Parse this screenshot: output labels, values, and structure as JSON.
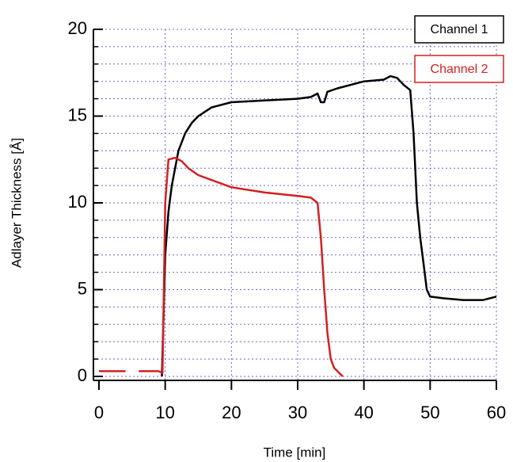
{
  "chart_data": {
    "type": "line",
    "x_label": "Time [min]",
    "y_label": "Adlayer Thickness [Å]",
    "xlim": [
      0,
      60
    ],
    "ylim": [
      0,
      20
    ],
    "xticks": [
      0,
      10,
      20,
      30,
      40,
      50,
      60
    ],
    "yticks": [
      0,
      5,
      10,
      15,
      20
    ],
    "y_minor_ticks": [
      1,
      2,
      3,
      4,
      6,
      7,
      8,
      9,
      11,
      12,
      13,
      14,
      16,
      17,
      18,
      19
    ],
    "grid": true,
    "legend": "upper right",
    "series": [
      {
        "name": "Channel 1",
        "color": "#000000",
        "x": [
          9.5,
          10,
          10.5,
          11,
          12,
          13,
          14,
          15,
          17,
          20,
          25,
          30,
          32,
          33,
          33.5,
          34,
          34.5,
          36,
          40,
          43,
          44,
          45,
          46,
          47,
          47.5,
          48,
          48.5,
          49,
          49.5,
          50,
          52,
          55,
          58,
          60
        ],
        "values": [
          0,
          7,
          9.5,
          11,
          13,
          14,
          14.6,
          15,
          15.5,
          15.8,
          15.9,
          16,
          16.1,
          16.3,
          15.8,
          15.8,
          16.4,
          16.6,
          17,
          17.1,
          17.3,
          17.2,
          16.8,
          16.5,
          14,
          10,
          8,
          6.5,
          5,
          4.6,
          4.5,
          4.4,
          4.4,
          4.6
        ]
      },
      {
        "name": "Channel 2",
        "color": "#d42020",
        "x": [
          0,
          4,
          5,
          6,
          9,
          9.6,
          10,
          10.5,
          11.5,
          12.5,
          13.5,
          15,
          20,
          25,
          30,
          32,
          33,
          33.5,
          34,
          34.5,
          35,
          35.5,
          36,
          36.8
        ],
        "values": [
          0.3,
          0.3,
          null,
          0.3,
          0.3,
          0.2,
          10,
          12.5,
          12.6,
          12.4,
          12,
          11.6,
          10.9,
          10.6,
          10.4,
          10.3,
          10,
          8,
          5,
          2.5,
          1,
          0.5,
          0.3,
          0
        ]
      }
    ]
  }
}
